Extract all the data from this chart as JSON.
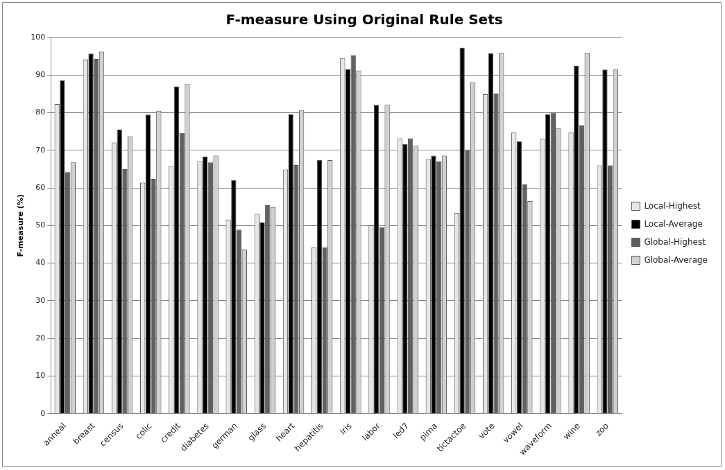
{
  "chart_data": {
    "type": "bar",
    "title": "F-measure Using Original Rule Sets",
    "ylabel": "F-measure (%)",
    "categories": [
      "anneal",
      "breast",
      "census",
      "colic",
      "credit",
      "diabetes",
      "german",
      "glass",
      "heart",
      "hepatitis",
      "iris",
      "labor",
      "led7",
      "pima",
      "tictactoe",
      "vote",
      "vowel",
      "waveform",
      "wine",
      "zoo"
    ],
    "series": [
      {
        "name": "Local-Highest",
        "color": "#e6e6e6",
        "values": [
          82.3,
          94.1,
          72.1,
          61.4,
          65.8,
          67.1,
          51.6,
          53.1,
          64.9,
          44.2,
          94.5,
          50,
          73.2,
          67.7,
          53.4,
          84.9,
          74.7,
          73,
          74.7,
          66
        ]
      },
      {
        "name": "Local-Average",
        "color": "#000000",
        "values": [
          88.6,
          95.7,
          75.5,
          79.5,
          86.9,
          68.3,
          62.1,
          50.9,
          79.6,
          67.4,
          91.6,
          82.1,
          71.6,
          68.6,
          97.3,
          95.8,
          72.4,
          79.6,
          92.5,
          91.5
        ]
      },
      {
        "name": "Global-Highest",
        "color": "#606060",
        "values": [
          64.2,
          94.3,
          65,
          62.4,
          74.6,
          66.8,
          48.9,
          55.4,
          66.1,
          44.2,
          95.3,
          49.6,
          73.2,
          67,
          70.1,
          85.1,
          61,
          80,
          76.6,
          66
        ]
      },
      {
        "name": "Global-Average",
        "color": "#d0d0d0",
        "values": [
          66.8,
          96.2,
          73.7,
          80.5,
          87.6,
          68.6,
          43.7,
          54.9,
          80.6,
          67.4,
          91.2,
          82.1,
          71.2,
          68.6,
          88.1,
          95.8,
          56.5,
          75.8,
          95.8,
          91.5
        ]
      }
    ],
    "ylim": [
      0,
      100
    ],
    "yticks": [
      0,
      10,
      20,
      30,
      40,
      50,
      60,
      70,
      80,
      90,
      100
    ],
    "grid": "y",
    "legend": "right"
  }
}
